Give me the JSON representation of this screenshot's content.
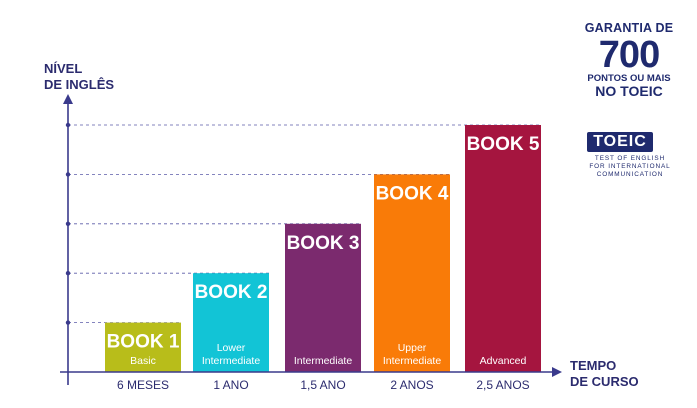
{
  "chart_data": {
    "type": "bar",
    "ylabel_line1": "NÍVEL",
    "ylabel_line2": "DE INGLÊS",
    "xlabel_line1": "TEMPO",
    "xlabel_line2": "DE CURSO",
    "categories": [
      "6 MESES",
      "1 ANO",
      "1,5 ANO",
      "2 ANOS",
      "2,5 ANOS"
    ],
    "values": [
      1,
      2,
      3,
      4,
      5
    ],
    "ylim": [
      0,
      5
    ],
    "grid": true,
    "bars": [
      {
        "title": "BOOK 1",
        "sub1": "Basic",
        "sub2": "",
        "color": "#b8bd1a"
      },
      {
        "title": "BOOK 2",
        "sub1": "Lower",
        "sub2": "Intermediate",
        "color": "#12c4d6"
      },
      {
        "title": "BOOK 3",
        "sub1": "Intermediate",
        "sub2": "",
        "color": "#7b2a6e"
      },
      {
        "title": "BOOK 4",
        "sub1": "Upper",
        "sub2": "Intermediate",
        "color": "#f97b08"
      },
      {
        "title": "BOOK 5",
        "sub1": "Advanced",
        "sub2": "",
        "color": "#a5153f"
      }
    ],
    "axis_color": "#3a3a8c"
  },
  "badge": {
    "line1": "GARANTIA DE",
    "line2": "700",
    "line3": "PONTOS OU MAIS",
    "line4": "NO TOEIC"
  },
  "logo": {
    "word": "TOEIC",
    "tagline_1": "TEST OF ENGLISH",
    "tagline_2": "FOR INTERNATIONAL",
    "tagline_3": "COMMUNICATION"
  }
}
